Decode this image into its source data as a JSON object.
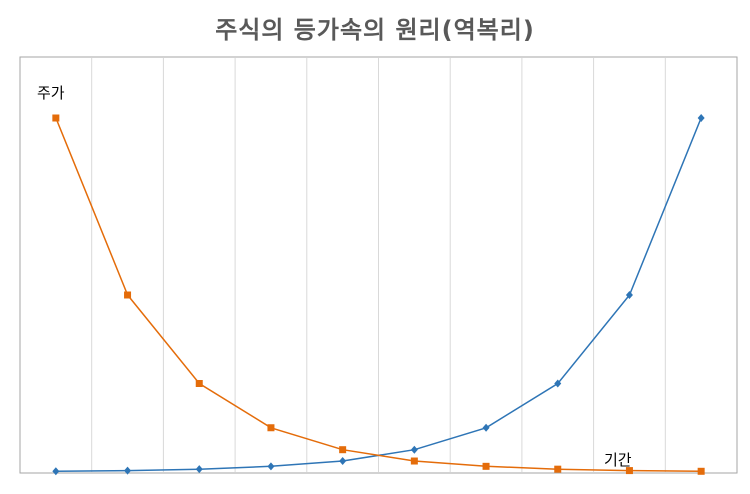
{
  "chart_data": {
    "type": "line",
    "title": "주식의 등가속의 원리(역복리)",
    "xlabel": "기간",
    "ylabel": "주가",
    "x": [
      1,
      2,
      3,
      4,
      5,
      6,
      7,
      8,
      9,
      10
    ],
    "ylim": [
      0,
      100
    ],
    "grid": {
      "vertical": true,
      "horizontal": false
    },
    "series": [
      {
        "color": "#2E75B6",
        "marker": "diamond",
        "values": [
          0.2,
          0.4,
          0.8,
          1.6,
          3.1,
          6.3,
          12.5,
          25,
          50,
          100
        ]
      },
      {
        "color": "#E46C0A",
        "marker": "square",
        "values": [
          100,
          50,
          25,
          12.5,
          6.3,
          3.1,
          1.6,
          0.8,
          0.4,
          0.2
        ]
      }
    ]
  }
}
